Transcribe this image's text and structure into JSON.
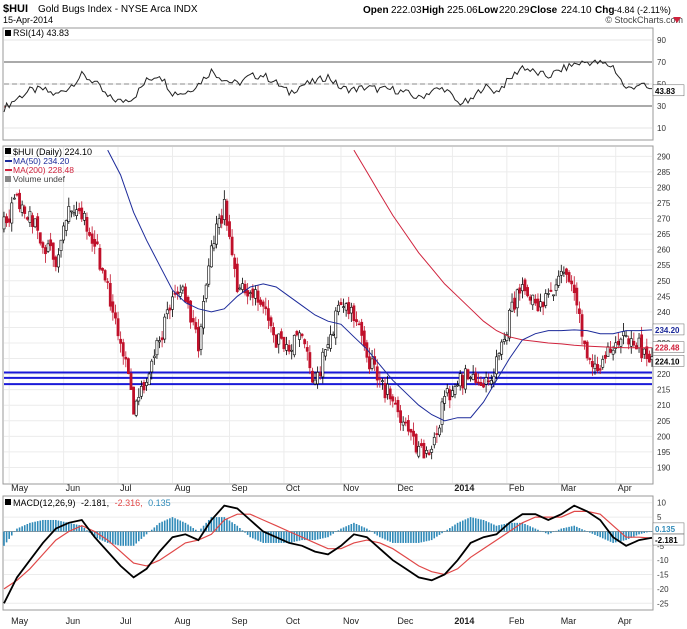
{
  "header": {
    "symbol": "$HUI",
    "name": "Gold Bugs Index - NYSE Arca INDX",
    "date": "15-Apr-2014",
    "watermark": "© StockCharts.com",
    "quote_labels": {
      "open": "Open",
      "high": "High",
      "low": "Low",
      "close": "Close",
      "chg": "Chg"
    },
    "open": "222.03",
    "high": "225.06",
    "low": "220.29",
    "close": "224.10",
    "chg": "-4.84 (-2.11%)"
  },
  "colors": {
    "ma50": "#1c2a9a",
    "ma200": "#d0233d",
    "down": "#c0102a",
    "up": "#000000",
    "support": "#1a1ad8",
    "hist": "#2f8ab8",
    "macd": "#000000",
    "signal": "#e04848",
    "rsi_fill_low": "#a05050"
  },
  "chart_data": [
    {
      "type": "line",
      "panel": "RSI",
      "legend": "RSI(14) 43.83",
      "value_label": "43.83",
      "ylim": [
        0,
        100
      ],
      "yticks": [
        "90",
        "70",
        "50",
        "30",
        "10"
      ],
      "levels": [
        70,
        30
      ],
      "x": [
        0,
        5,
        10,
        15,
        20,
        25,
        30,
        35,
        40,
        45,
        50,
        55,
        60,
        65,
        70,
        75,
        80,
        85,
        90,
        95,
        100,
        105,
        110,
        115,
        120,
        125,
        130,
        135,
        140,
        145,
        150,
        155,
        160,
        165,
        170,
        175,
        180,
        185,
        190,
        195,
        200,
        205,
        210,
        215,
        220,
        225,
        230,
        235,
        240,
        245,
        250
      ],
      "values": [
        28,
        37,
        44,
        45,
        40,
        47,
        58,
        52,
        38,
        34,
        38,
        53,
        59,
        42,
        42,
        50,
        62,
        54,
        50,
        57,
        58,
        51,
        42,
        49,
        52,
        57,
        46,
        45,
        47,
        45,
        45,
        42,
        37,
        44,
        46,
        33,
        34,
        48,
        43,
        54,
        66,
        60,
        57,
        63,
        68,
        70,
        69,
        66,
        45,
        50,
        44
      ]
    },
    {
      "type": "candlestick",
      "panel": "Price",
      "legend": [
        "$HUI (Daily) 224.10",
        "MA(50) 234.20",
        "MA(200) 228.48",
        "Volume undef"
      ],
      "ylim": [
        185,
        293
      ],
      "yticks": [
        "290",
        "285",
        "280",
        "275",
        "270",
        "265",
        "260",
        "255",
        "250",
        "245",
        "240",
        "235",
        "230",
        "225",
        "220",
        "215",
        "210",
        "205",
        "200",
        "195",
        "190"
      ],
      "price_labels": [
        "234.20",
        "228.48",
        "224.10"
      ],
      "support_levels": [
        220.5,
        218.8,
        216.8
      ],
      "x": [
        0,
        5,
        10,
        15,
        20,
        25,
        30,
        35,
        40,
        45,
        50,
        55,
        60,
        65,
        70,
        75,
        80,
        85,
        90,
        95,
        100,
        105,
        110,
        115,
        120,
        125,
        130,
        135,
        140,
        145,
        150,
        155,
        160,
        165,
        170,
        175,
        180,
        185,
        190,
        195,
        200,
        205,
        210,
        215,
        220,
        225,
        230,
        235,
        240,
        245,
        250
      ],
      "close": [
        268,
        275,
        271,
        262,
        257,
        276,
        272,
        262,
        248,
        232,
        210,
        216,
        231,
        246,
        245,
        230,
        260,
        274,
        248,
        246,
        243,
        231,
        228,
        232,
        216,
        230,
        244,
        240,
        226,
        218,
        211,
        202,
        195,
        193,
        212,
        217,
        220,
        215,
        223,
        238,
        249,
        243,
        244,
        254,
        245,
        226,
        221,
        230,
        232,
        229,
        224.1
      ],
      "ma50": [
        null,
        null,
        null,
        null,
        null,
        null,
        null,
        null,
        292,
        284,
        272,
        263,
        255,
        247,
        243,
        241,
        240,
        241,
        245,
        248,
        249,
        248,
        245,
        242,
        239,
        237,
        236,
        232,
        228,
        223,
        218,
        214,
        210,
        207,
        205,
        206,
        206,
        211,
        218,
        225,
        231,
        233,
        234,
        234,
        234.2,
        234,
        233,
        233,
        234,
        234,
        234.2
      ],
      "ma200": [
        null,
        null,
        null,
        null,
        null,
        null,
        null,
        null,
        null,
        null,
        null,
        null,
        null,
        null,
        null,
        null,
        null,
        null,
        null,
        null,
        null,
        null,
        null,
        null,
        null,
        null,
        null,
        292,
        285,
        278,
        271,
        265,
        259,
        254,
        249,
        245,
        241,
        237,
        234,
        232,
        231,
        230.5,
        230,
        229.7,
        229.3,
        229,
        228.8,
        228.6,
        228.5,
        228.5,
        228.48
      ]
    },
    {
      "type": "line",
      "panel": "MACD",
      "legend": "MACD(12,26,9) -2.181, -2.316, 0.135",
      "legend_parts": [
        "MACD(12,26,9)",
        "-2.181,",
        "-2.316,",
        "0.135"
      ],
      "value_labels": [
        "0.135",
        "-2.181"
      ],
      "ylim": [
        -27,
        12
      ],
      "yticks": [
        "10",
        "5",
        "0",
        "-5",
        "-10",
        "-15",
        "-20",
        "-25"
      ],
      "x": [
        0,
        5,
        10,
        15,
        20,
        25,
        30,
        35,
        40,
        45,
        50,
        55,
        60,
        65,
        70,
        75,
        80,
        85,
        90,
        95,
        100,
        105,
        110,
        115,
        120,
        125,
        130,
        135,
        140,
        145,
        150,
        155,
        160,
        165,
        170,
        175,
        180,
        185,
        190,
        195,
        200,
        205,
        210,
        215,
        220,
        225,
        230,
        235,
        240,
        245,
        250
      ],
      "macd": [
        -25,
        -16,
        -10,
        -4,
        1,
        3,
        4,
        -2,
        -7,
        -12,
        -16,
        -13,
        -7,
        -2,
        -1,
        -3,
        4,
        9,
        8,
        4,
        0,
        -2,
        -4,
        -5,
        -7,
        -8,
        -5,
        -1,
        -2,
        -6,
        -10,
        -13,
        -16,
        -17,
        -15,
        -10,
        -4,
        -2,
        -1,
        3,
        6,
        6,
        4,
        6,
        9,
        7,
        4,
        -2,
        -5,
        -3,
        -2.181
      ],
      "signal": [
        -20,
        -17,
        -13,
        -8,
        -3,
        0,
        2,
        0,
        -3,
        -7,
        -11,
        -12,
        -10,
        -7,
        -4,
        -3,
        -1,
        4,
        6,
        6,
        4,
        2,
        0,
        -2,
        -4,
        -6,
        -6,
        -4,
        -3,
        -4,
        -6,
        -9,
        -12,
        -14,
        -15,
        -13,
        -9,
        -6,
        -3,
        0,
        3,
        5,
        5,
        5,
        7,
        7,
        6,
        2,
        -2,
        -2,
        -2.316
      ]
    }
  ],
  "x_axis": {
    "months": [
      {
        "label": "May",
        "x": 2
      },
      {
        "label": "Jun",
        "x": 23
      },
      {
        "label": "Jul",
        "x": 44
      },
      {
        "label": "Aug",
        "x": 65
      },
      {
        "label": "Sep",
        "x": 87
      },
      {
        "label": "Oct",
        "x": 108
      },
      {
        "label": "Nov",
        "x": 130
      },
      {
        "label": "Dec",
        "x": 151
      },
      {
        "label": "2014",
        "x": 173
      },
      {
        "label": "Feb",
        "x": 194
      },
      {
        "label": "Mar",
        "x": 214
      },
      {
        "label": "Apr",
        "x": 236
      }
    ]
  }
}
